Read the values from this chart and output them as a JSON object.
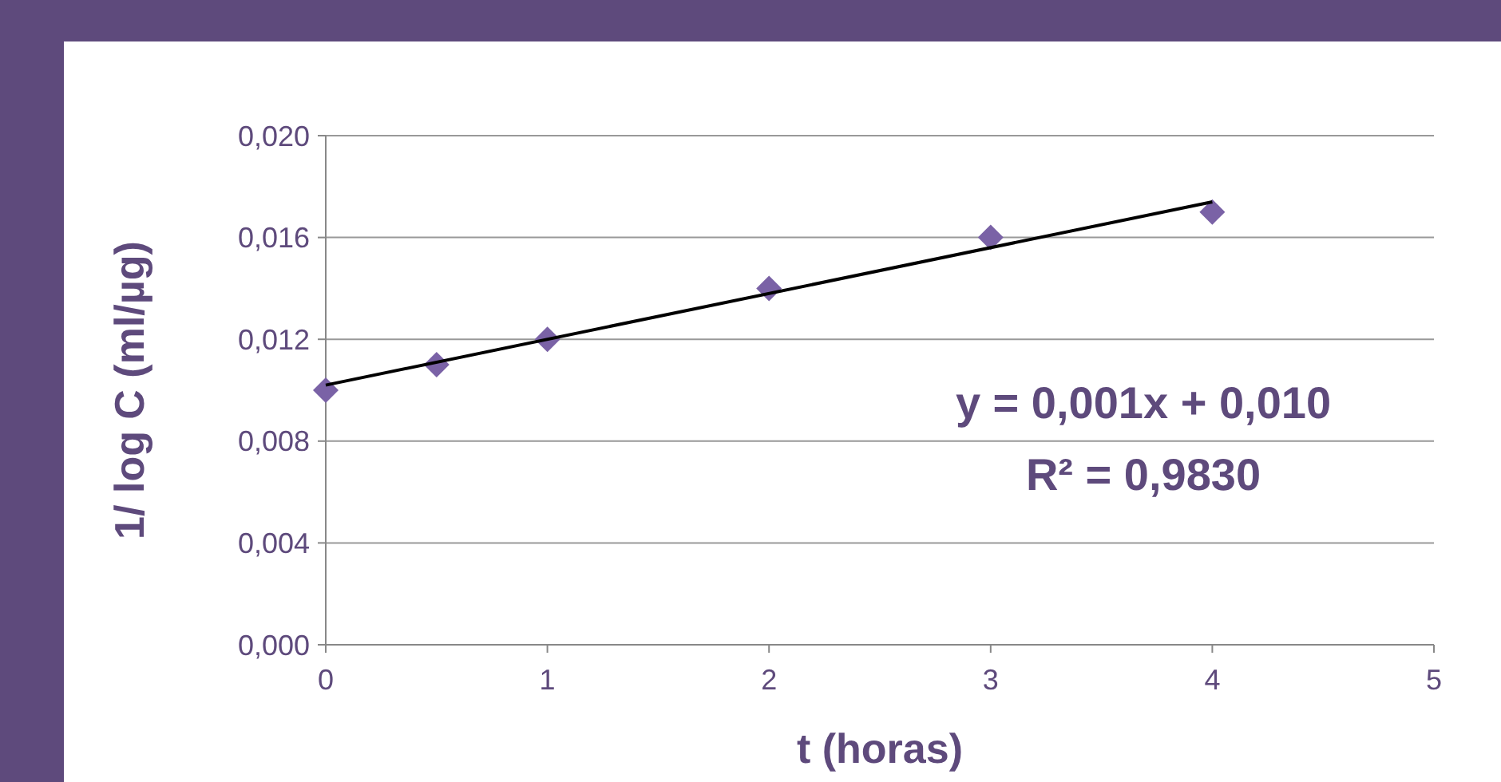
{
  "chart_data": {
    "type": "scatter",
    "xlabel": "t (horas)",
    "ylabel": "1/ log C  (ml/µg)",
    "x": [
      0,
      0.5,
      1,
      2,
      3,
      4
    ],
    "series": [
      {
        "color": "#7a62a6",
        "values": [
          0.01,
          0.011,
          0.012,
          0.014,
          0.016,
          0.017
        ],
        "marker": "diamond"
      },
      {
        "type": "line",
        "color": "#000000",
        "x": [
          0,
          4
        ],
        "values": [
          0.0102,
          0.0174
        ],
        "line_style": "solid"
      }
    ],
    "xlim": [
      0,
      5
    ],
    "xticks": [
      0,
      1,
      2,
      3,
      4,
      5
    ],
    "ylim": [
      0,
      0.02
    ],
    "yticks": [
      {
        "value": 0,
        "label": "0,000"
      },
      {
        "value": 0.004,
        "label": "0,004"
      },
      {
        "value": 0.008,
        "label": "0,008"
      },
      {
        "value": 0.012,
        "label": "0,012"
      },
      {
        "value": 0.016,
        "label": "0,016"
      },
      {
        "value": 0.02,
        "label": "0,020"
      }
    ],
    "grid": "y",
    "annotations": [
      "y = 0,001x + 0,010",
      "R² = 0,9830"
    ]
  }
}
